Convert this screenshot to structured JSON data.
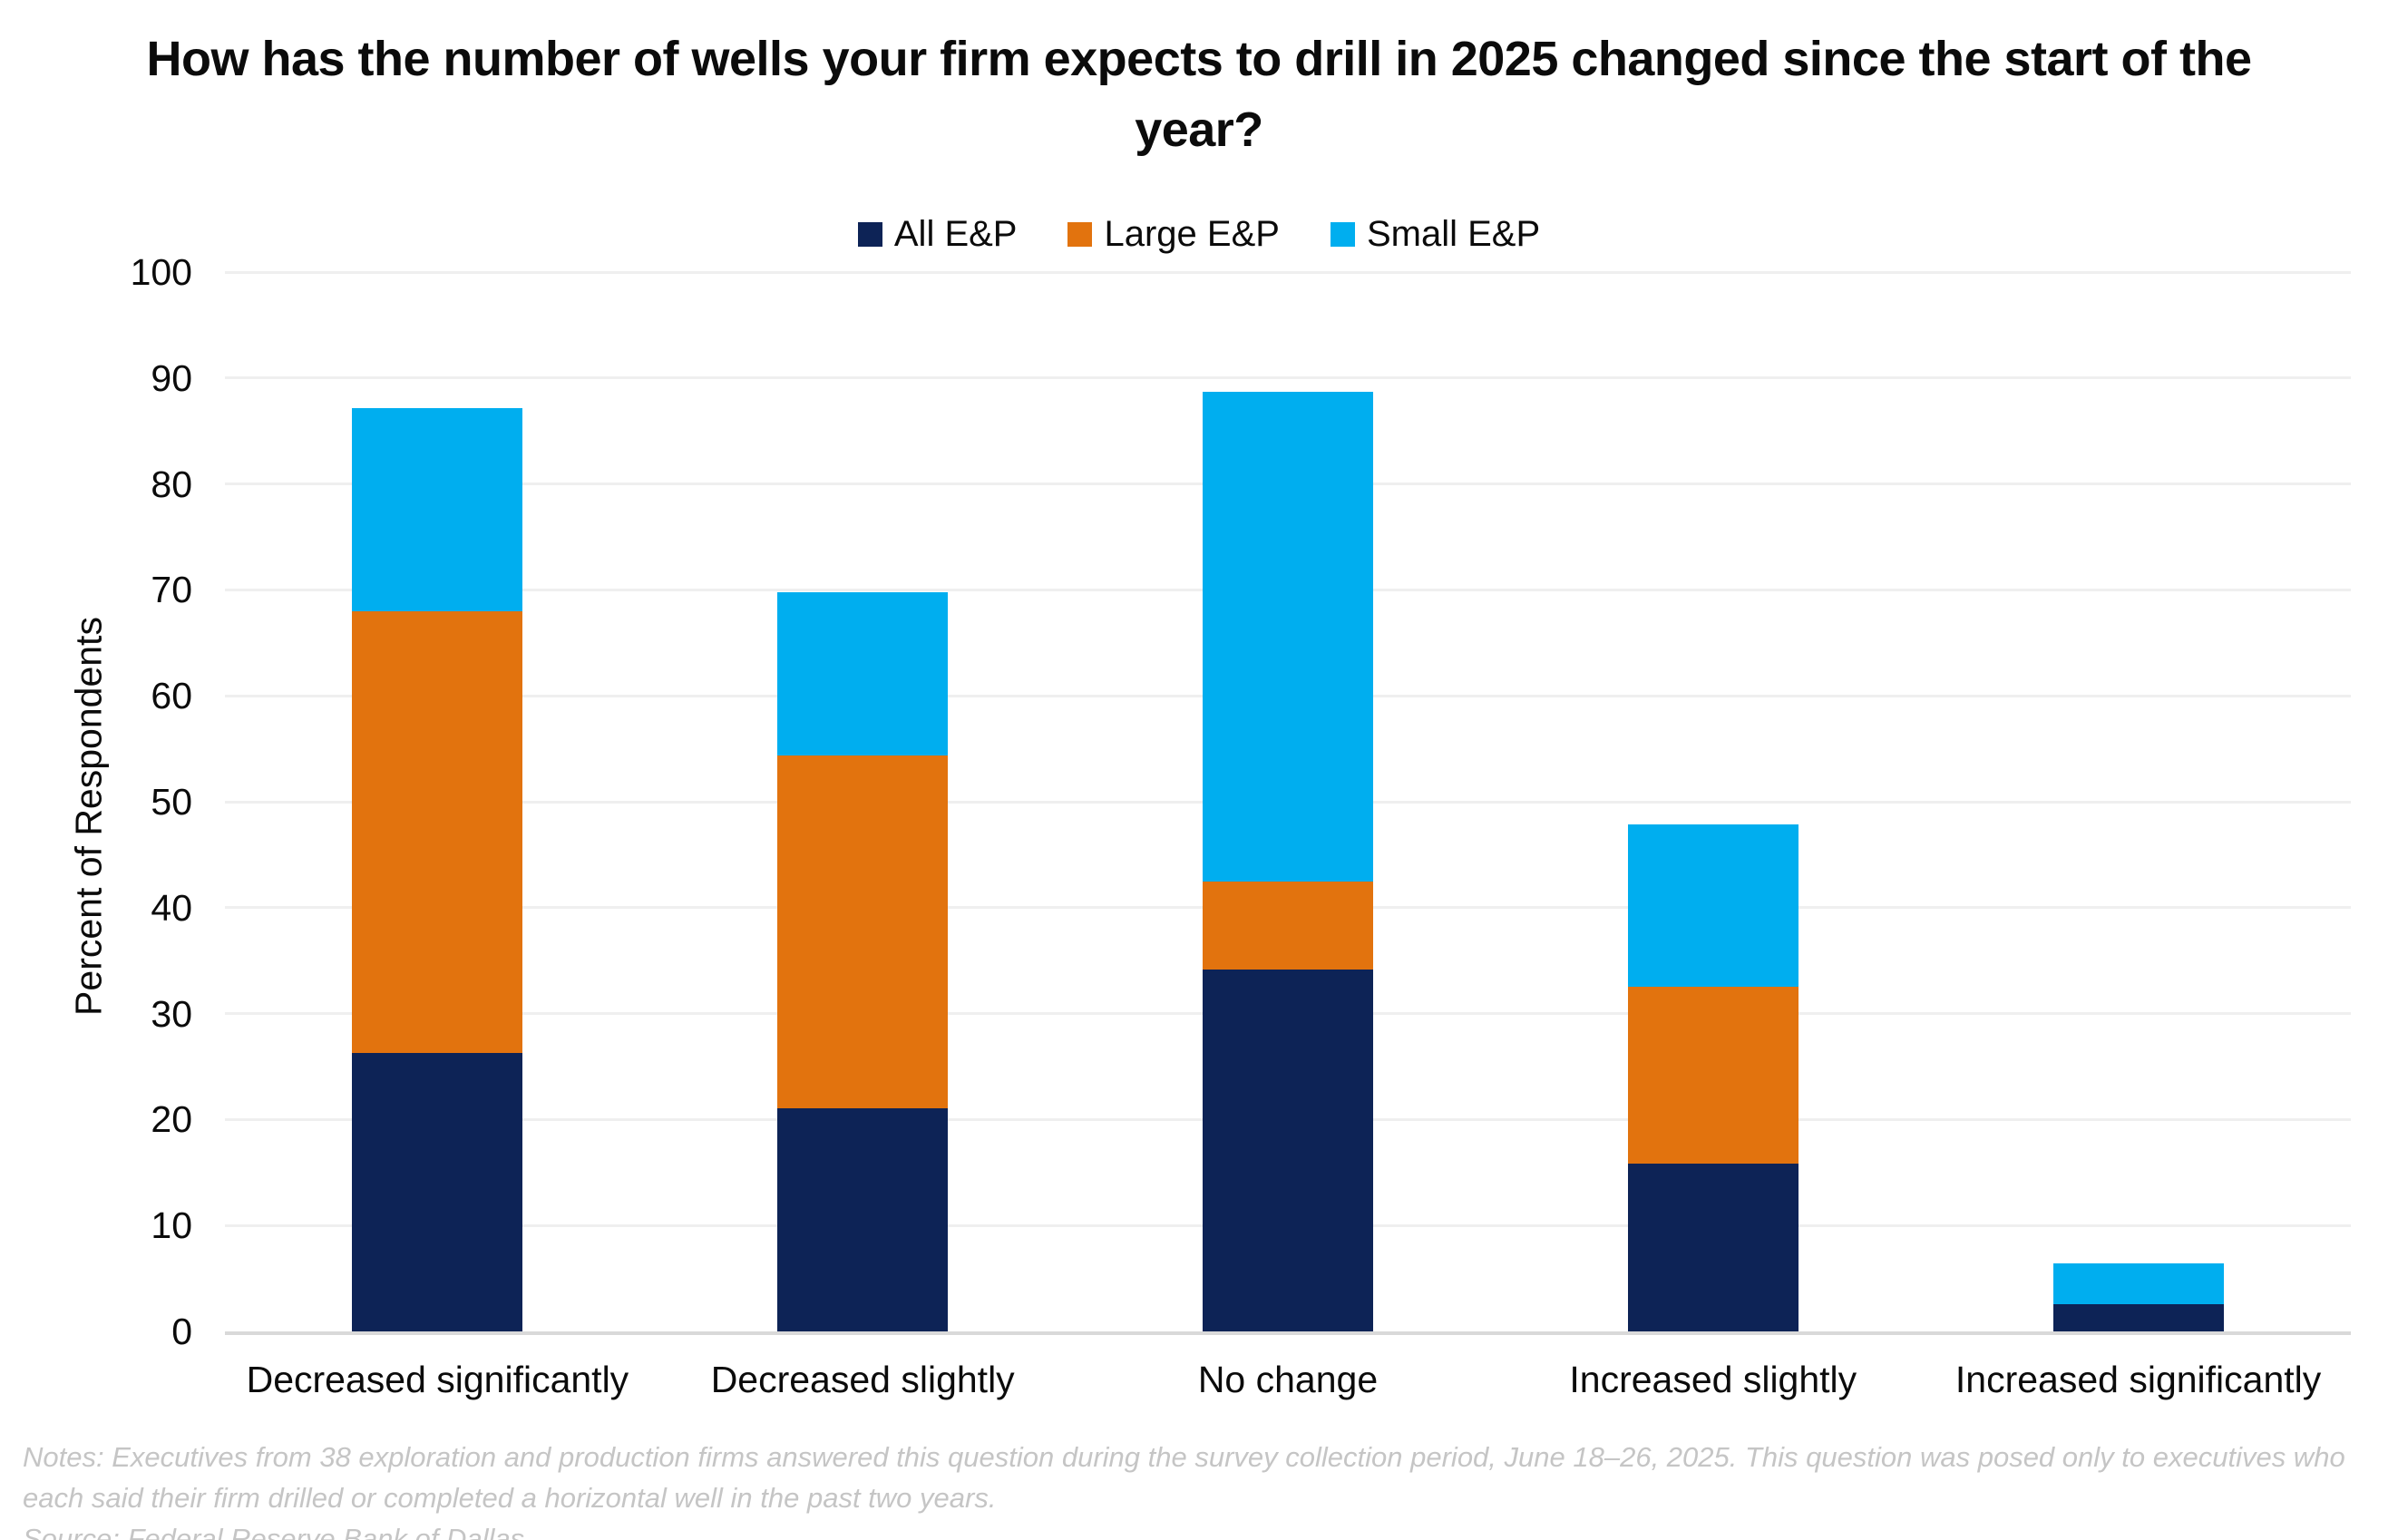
{
  "page": {
    "background": "#FFFFFF"
  },
  "title": {
    "text": "How has the number of wells your firm expects to drill in 2025 changed since the start of the year?"
  },
  "chart_data": {
    "type": "bar",
    "stacked": true,
    "categories": [
      "Decreased significantly",
      "Decreased slightly",
      "No change",
      "Increased slightly",
      "Increased significantly"
    ],
    "series": [
      {
        "name": "All E&P",
        "color": "#0D2356",
        "values": [
          26.3,
          21.1,
          34.2,
          15.8,
          2.6
        ]
      },
      {
        "name": "Large E&P",
        "color": "#E2730E",
        "values": [
          41.7,
          33.3,
          8.3,
          16.7,
          0
        ]
      },
      {
        "name": "Small E&P",
        "color": "#00AEEF",
        "values": [
          19.2,
          15.4,
          46.2,
          15.4,
          3.8
        ]
      }
    ],
    "stack_totals": [
      87.2,
      69.8,
      88.7,
      47.9,
      6.4
    ],
    "ylabel": "Percent of Respondents",
    "ylim": [
      0,
      100
    ],
    "yticks": [
      0,
      10,
      20,
      30,
      40,
      50,
      60,
      70,
      80,
      90,
      100
    ],
    "grid": true,
    "legend_position": "top",
    "gridline_color": "#EFEFEF",
    "axisline_color": "#D9D9D9"
  },
  "footnotes": {
    "line1": "Notes: Executives from 38 exploration and production firms answered this question during the survey collection period, June 18–26, 2025. This question was posed only to executives who",
    "line2": "each said their firm drilled or completed a horizontal well in the past two years.",
    "source": "Source: Federal Reserve Bank of Dallas.",
    "color": "#C5C5C5"
  }
}
